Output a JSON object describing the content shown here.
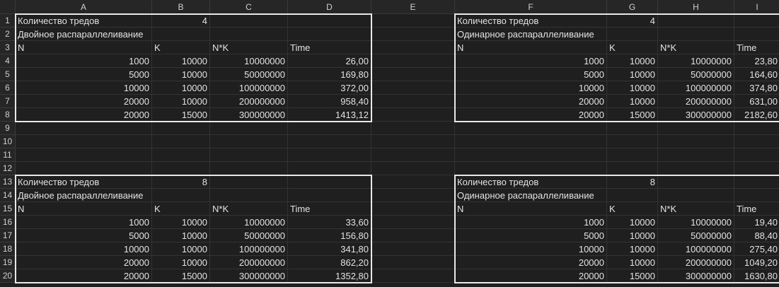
{
  "columns": [
    "A",
    "B",
    "C",
    "D",
    "E",
    "F",
    "G",
    "H",
    "I"
  ],
  "rows": [
    "1",
    "2",
    "3",
    "4",
    "5",
    "6",
    "7",
    "8",
    "9",
    "10",
    "11",
    "12",
    "13",
    "14",
    "15",
    "16",
    "17",
    "18",
    "19",
    "20"
  ],
  "blocks": [
    {
      "id": "block-top-left",
      "threads_label": "Количество тредов",
      "threads_value": "4",
      "mode_label": "Двойное распараллеливание",
      "headers": [
        "N",
        "K",
        "N*K",
        "Time"
      ],
      "data": [
        [
          "1000",
          "10000",
          "10000000",
          "26,00"
        ],
        [
          "5000",
          "10000",
          "50000000",
          "169,80"
        ],
        [
          "10000",
          "10000",
          "100000000",
          "372,00"
        ],
        [
          "20000",
          "10000",
          "200000000",
          "958,40"
        ],
        [
          "20000",
          "15000",
          "300000000",
          "1413,12"
        ]
      ]
    },
    {
      "id": "block-top-right",
      "threads_label": "Количество тредов",
      "threads_value": "4",
      "mode_label": "Одинарное распараллеливание",
      "headers": [
        "N",
        "K",
        "N*K",
        "Time"
      ],
      "data": [
        [
          "1000",
          "10000",
          "10000000",
          "23,80"
        ],
        [
          "5000",
          "10000",
          "50000000",
          "164,60"
        ],
        [
          "10000",
          "10000",
          "100000000",
          "374,80"
        ],
        [
          "20000",
          "10000",
          "200000000",
          "631,00"
        ],
        [
          "20000",
          "15000",
          "300000000",
          "2182,60"
        ]
      ]
    },
    {
      "id": "block-bottom-left",
      "threads_label": "Количество тредов",
      "threads_value": "8",
      "mode_label": "Двойное распараллеливание",
      "headers": [
        "N",
        "K",
        "N*K",
        "Time"
      ],
      "data": [
        [
          "1000",
          "10000",
          "10000000",
          "33,60"
        ],
        [
          "5000",
          "10000",
          "50000000",
          "156,80"
        ],
        [
          "10000",
          "10000",
          "100000000",
          "341,80"
        ],
        [
          "20000",
          "10000",
          "200000000",
          "862,20"
        ],
        [
          "20000",
          "15000",
          "300000000",
          "1352,80"
        ]
      ]
    },
    {
      "id": "block-bottom-right",
      "threads_label": "Количество тредов",
      "threads_value": "8",
      "mode_label": "Одинарное распараллеливание",
      "headers": [
        "N",
        "K",
        "N*K",
        "Time"
      ],
      "data": [
        [
          "1000",
          "10000",
          "10000000",
          "19,40"
        ],
        [
          "5000",
          "10000",
          "50000000",
          "88,40"
        ],
        [
          "10000",
          "10000",
          "100000000",
          "275,40"
        ],
        [
          "20000",
          "10000",
          "200000000",
          "1049,20"
        ],
        [
          "20000",
          "15000",
          "300000000",
          "1630,80"
        ]
      ]
    }
  ]
}
